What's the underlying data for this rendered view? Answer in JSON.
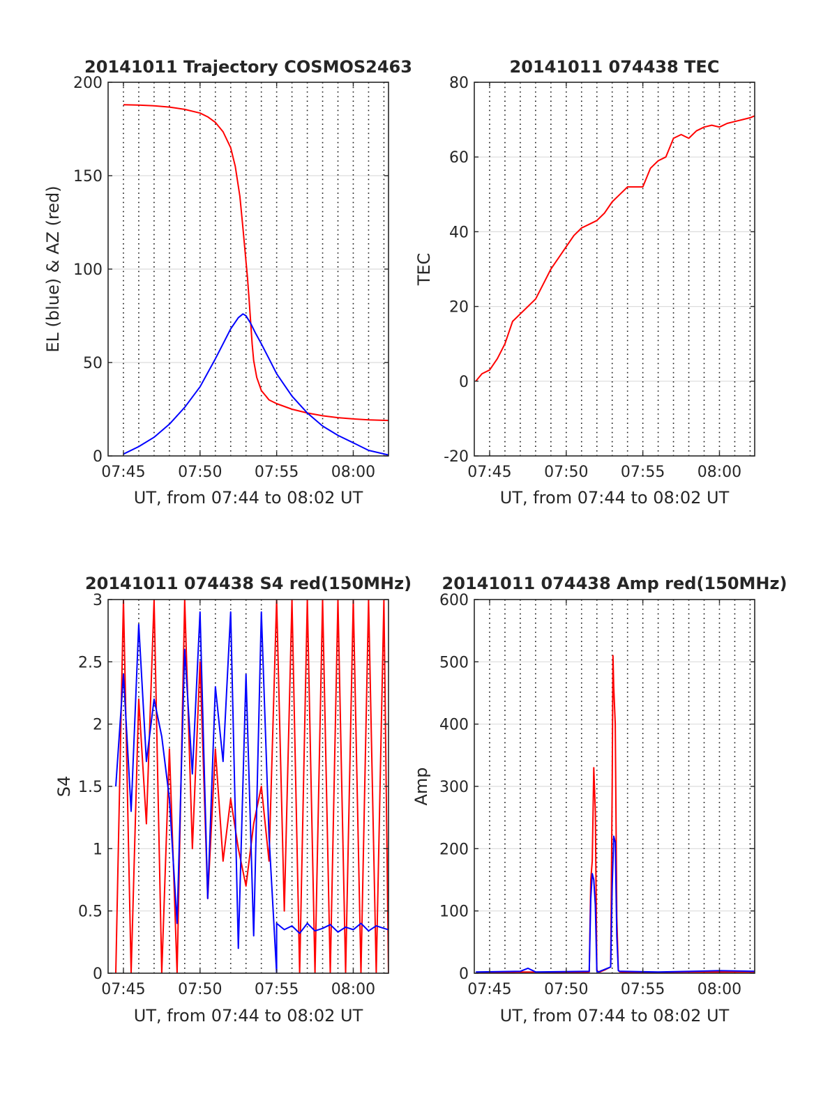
{
  "chart_data": [
    {
      "type": "line",
      "title": "20141011 Trajectory COSMOS2463",
      "xlabel": "UT, from 07:44 to 08:02 UT",
      "ylabel": "EL (blue) & AZ (red)",
      "xlim_minutes": [
        0,
        18.3
      ],
      "x_tick_minutes": [
        1,
        6,
        11,
        16
      ],
      "x_tick_labels": [
        "07:45",
        "07:50",
        "07:55",
        "08:00"
      ],
      "ylim": [
        0,
        200
      ],
      "y_ticks": [
        0,
        50,
        100,
        150,
        200
      ],
      "grid": true,
      "series": [
        {
          "color": "#ff0000",
          "x_minutes": [
            1,
            2,
            3,
            4,
            5,
            6,
            6.5,
            7,
            7.5,
            8,
            8.3,
            8.6,
            8.8,
            9.0,
            9.1,
            9.2,
            9.3,
            9.4,
            9.5,
            9.7,
            10.0,
            10.5,
            11,
            11.5,
            12,
            13,
            14,
            15,
            16,
            17,
            18.3
          ],
          "values": [
            188,
            187.8,
            187.4,
            186.7,
            185.5,
            183.5,
            181.5,
            178.5,
            173.5,
            165,
            155,
            139,
            122,
            104,
            95,
            84,
            72,
            60,
            51,
            42,
            35,
            30,
            28,
            26.5,
            25,
            23,
            21.5,
            20.5,
            19.8,
            19.3,
            19
          ]
        },
        {
          "color": "#0000ff",
          "x_minutes": [
            1,
            2,
            3,
            4,
            5,
            6,
            7,
            7.5,
            8,
            8.5,
            8.8,
            9.0,
            9.3,
            9.6,
            10,
            10.5,
            11,
            11.5,
            12,
            13,
            14,
            15,
            16,
            17,
            18.3
          ],
          "values": [
            1,
            5,
            10,
            17,
            26,
            37,
            52,
            60,
            68,
            74,
            76,
            75,
            71,
            66,
            60,
            52,
            44,
            38,
            32,
            23,
            16,
            11,
            7,
            3,
            0.5
          ]
        }
      ]
    },
    {
      "type": "line",
      "title": "20141011 074438 TEC",
      "xlabel": "UT, from 07:44 to 08:02 UT",
      "ylabel": "TEC",
      "xlim_minutes": [
        0,
        18.3
      ],
      "x_tick_minutes": [
        1,
        6,
        11,
        16
      ],
      "x_tick_labels": [
        "07:45",
        "07:50",
        "07:55",
        "08:00"
      ],
      "ylim": [
        -20,
        80
      ],
      "y_ticks": [
        -20,
        0,
        20,
        40,
        60,
        80
      ],
      "grid": true,
      "series": [
        {
          "color": "#ff0000",
          "x_minutes": [
            0.1,
            0.5,
            1,
            1.5,
            2,
            2.5,
            3,
            3.5,
            4,
            4.5,
            5,
            5.5,
            6,
            6.5,
            7,
            7.5,
            8,
            8.5,
            9,
            9.5,
            10,
            10.5,
            11,
            11.5,
            12,
            12.5,
            13,
            13.5,
            14,
            14.5,
            15,
            15.5,
            16,
            16.5,
            17,
            17.5,
            18,
            18.3
          ],
          "values": [
            0,
            2,
            3,
            6,
            10,
            16,
            18,
            20,
            22,
            26,
            30,
            33,
            36,
            39,
            41,
            42,
            43,
            45,
            48,
            50,
            52,
            52,
            52,
            57,
            59,
            60,
            65,
            66,
            65,
            67,
            68,
            68.5,
            68,
            69,
            69.5,
            70,
            70.5,
            71
          ]
        }
      ]
    },
    {
      "type": "line",
      "title": "20141011 074438 S4 red(150MHz)",
      "xlabel": "UT, from 07:44 to 08:02 UT",
      "ylabel": "S4",
      "xlim_minutes": [
        0,
        18.3
      ],
      "x_tick_minutes": [
        1,
        6,
        11,
        16
      ],
      "x_tick_labels": [
        "07:45",
        "07:50",
        "07:55",
        "08:00"
      ],
      "ylim": [
        0,
        3
      ],
      "y_ticks": [
        0,
        0.5,
        1,
        1.5,
        2,
        2.5,
        3
      ],
      "y_tick_labels": [
        "0",
        "0.5",
        "1",
        "1.5",
        "2",
        "2.5",
        "3"
      ],
      "grid": true,
      "series": [
        {
          "color": "#ff0000",
          "x_minutes": [
            0.5,
            1,
            1.5,
            2,
            2.5,
            3,
            3.5,
            4,
            4.5,
            5,
            5.5,
            6,
            6.5,
            7,
            7.5,
            8,
            8.5,
            9,
            9.5,
            10,
            10.5,
            11,
            11.5,
            12,
            12.5,
            13,
            13.5,
            14,
            14.5,
            15,
            15.5,
            16,
            16.5,
            17,
            17.5,
            18,
            18.3
          ],
          "values": [
            0,
            3,
            0,
            2.2,
            1.2,
            3,
            0,
            1.8,
            0,
            3,
            1.0,
            2.5,
            0.6,
            1.8,
            0.9,
            1.4,
            1.0,
            0.7,
            1.2,
            1.5,
            0.9,
            3,
            0.5,
            3,
            0,
            3,
            0,
            3,
            0,
            3,
            0,
            3,
            0,
            3,
            0,
            3,
            0
          ]
        },
        {
          "color": "#0000ff",
          "x_minutes": [
            0.5,
            1,
            1.5,
            2,
            2.5,
            3,
            3.5,
            4,
            4.5,
            5,
            5.5,
            6,
            6.5,
            7,
            7.5,
            8,
            8.5,
            9,
            9.5,
            10,
            10.5,
            11,
            11,
            11.5,
            12,
            12.5,
            13,
            13.5,
            14,
            14.5,
            15,
            15.5,
            16,
            16.5,
            17,
            17.5,
            18,
            18.3
          ],
          "values": [
            1.5,
            2.4,
            1.3,
            2.8,
            1.7,
            2.2,
            1.9,
            1.4,
            0.4,
            2.6,
            1.6,
            2.9,
            0.6,
            2.3,
            1.7,
            2.9,
            0.2,
            2.4,
            0.3,
            2.9,
            1.1,
            0,
            0.4,
            0.35,
            0.38,
            0.32,
            0.4,
            0.34,
            0.36,
            0.39,
            0.33,
            0.37,
            0.35,
            0.4,
            0.34,
            0.38,
            0.36,
            0.35
          ]
        }
      ]
    },
    {
      "type": "line",
      "title": "20141011 074438 Amp red(150MHz)",
      "xlabel": "UT, from 07:44 to 08:02 UT",
      "ylabel": "Amp",
      "xlim_minutes": [
        0,
        18.3
      ],
      "x_tick_minutes": [
        1,
        6,
        11,
        16
      ],
      "x_tick_labels": [
        "07:45",
        "07:50",
        "07:55",
        "08:00"
      ],
      "ylim": [
        0,
        600
      ],
      "y_ticks": [
        0,
        100,
        200,
        300,
        400,
        500,
        600
      ],
      "grid": true,
      "series": [
        {
          "color": "#ff0000",
          "x_minutes": [
            0.1,
            3,
            7,
            7.5,
            7.6,
            7.7,
            7.8,
            7.9,
            8.0,
            8.1,
            8.2,
            8.5,
            8.9,
            9.0,
            9.05,
            9.1,
            9.2,
            9.3,
            9.4,
            9.5,
            10,
            14,
            18.3
          ],
          "values": [
            0,
            2,
            1,
            2,
            150,
            180,
            330,
            260,
            5,
            2,
            2,
            5,
            10,
            300,
            510,
            460,
            400,
            90,
            5,
            2,
            1,
            2,
            2
          ]
        },
        {
          "color": "#0000ff",
          "x_minutes": [
            0.1,
            3,
            3.5,
            4,
            7.5,
            7.6,
            7.7,
            7.8,
            7.9,
            8.0,
            8.1,
            8.9,
            9.0,
            9.1,
            9.2,
            9.3,
            9.4,
            9.5,
            12,
            16,
            18.3
          ],
          "values": [
            2,
            3,
            8,
            2,
            3,
            120,
            160,
            150,
            110,
            3,
            2,
            10,
            140,
            220,
            210,
            60,
            4,
            3,
            2,
            4,
            3
          ]
        }
      ]
    }
  ]
}
